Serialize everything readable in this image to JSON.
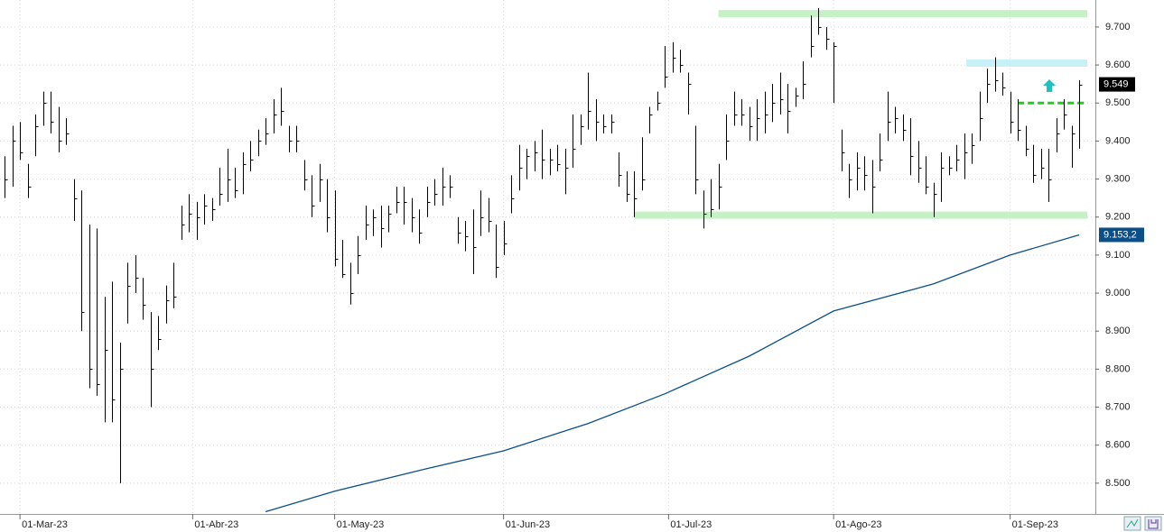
{
  "chart_data": {
    "type": "ohlc",
    "high": [
      9.36,
      9.44,
      9.45,
      9.34,
      9.47,
      9.53,
      9.53,
      9.49,
      9.46,
      9.3,
      9.27,
      9.18,
      9.17,
      8.99,
      9.03,
      8.87,
      9.08,
      9.1,
      9.04,
      8.95,
      8.94,
      9.02,
      9.08,
      9.23,
      9.26,
      9.24,
      9.26,
      9.25,
      9.33,
      9.38,
      9.33,
      9.37,
      9.4,
      9.43,
      9.46,
      9.51,
      9.54,
      9.44,
      9.44,
      9.35,
      9.31,
      9.34,
      9.3,
      9.27,
      9.14,
      9.08,
      9.15,
      9.23,
      9.22,
      9.23,
      9.23,
      9.28,
      9.28,
      9.25,
      9.22,
      9.28,
      9.3,
      9.33,
      9.31,
      9.2,
      9.19,
      9.22,
      9.27,
      9.25,
      9.18,
      9.19,
      9.31,
      9.39,
      9.38,
      9.4,
      9.43,
      9.38,
      9.39,
      9.38,
      9.47,
      9.47,
      9.58,
      9.51,
      9.47,
      9.47,
      9.37,
      9.32,
      9.32,
      9.41,
      9.49,
      9.53,
      9.65,
      9.66,
      9.64,
      9.58,
      9.44,
      9.27,
      9.3,
      9.34,
      9.47,
      9.53,
      9.51,
      9.49,
      9.51,
      9.53,
      9.55,
      9.58,
      9.55,
      9.54,
      9.61,
      9.73,
      9.75,
      9.7,
      9.66,
      9.43,
      9.34,
      9.37,
      9.36,
      9.35,
      9.42,
      9.53,
      9.49,
      9.47,
      9.46,
      9.4,
      9.36,
      9.29,
      9.37,
      9.36,
      9.39,
      9.42,
      9.42,
      9.53,
      9.59,
      9.62,
      9.58,
      9.53,
      9.51,
      9.44,
      9.39,
      9.38,
      9.38,
      9.46,
      9.51,
      9.44,
      9.56
    ],
    "low": [
      9.25,
      9.28,
      9.35,
      9.25,
      9.36,
      9.44,
      9.42,
      9.37,
      9.39,
      9.19,
      8.9,
      8.75,
      8.73,
      8.66,
      8.66,
      8.5,
      8.92,
      9.0,
      8.93,
      8.7,
      8.85,
      8.92,
      8.96,
      9.14,
      9.16,
      9.14,
      9.18,
      9.19,
      9.23,
      9.24,
      9.25,
      9.26,
      9.32,
      9.36,
      9.39,
      9.42,
      9.44,
      9.37,
      9.37,
      9.27,
      9.2,
      9.24,
      9.16,
      9.07,
      9.04,
      8.97,
      9.05,
      9.14,
      9.15,
      9.12,
      9.16,
      9.21,
      9.18,
      9.16,
      9.13,
      9.2,
      9.23,
      9.23,
      9.25,
      9.13,
      9.11,
      9.05,
      9.15,
      9.16,
      9.04,
      9.1,
      9.21,
      9.27,
      9.3,
      9.32,
      9.3,
      9.31,
      9.32,
      9.26,
      9.33,
      9.39,
      9.43,
      9.4,
      9.42,
      9.42,
      9.28,
      9.24,
      9.2,
      9.27,
      9.42,
      9.48,
      9.54,
      9.58,
      9.58,
      9.47,
      9.26,
      9.17,
      9.2,
      9.22,
      9.35,
      9.44,
      9.44,
      9.4,
      9.4,
      9.42,
      9.45,
      9.47,
      9.42,
      9.49,
      9.51,
      9.62,
      9.68,
      9.64,
      9.5,
      9.32,
      9.25,
      9.27,
      9.27,
      9.21,
      9.32,
      9.4,
      9.42,
      9.4,
      9.31,
      9.29,
      9.26,
      9.2,
      9.24,
      9.31,
      9.32,
      9.3,
      9.34,
      9.4,
      9.5,
      9.53,
      9.52,
      9.42,
      9.4,
      9.36,
      9.29,
      9.3,
      9.24,
      9.37,
      9.43,
      9.33,
      9.38
    ],
    "close": [
      9.3,
      9.4,
      9.37,
      9.28,
      9.44,
      9.5,
      9.45,
      9.4,
      9.42,
      9.25,
      8.95,
      8.8,
      8.76,
      8.85,
      8.72,
      8.8,
      9.02,
      9.04,
      8.97,
      8.8,
      8.88,
      8.98,
      8.99,
      9.18,
      9.21,
      9.2,
      9.23,
      9.22,
      9.26,
      9.3,
      9.27,
      9.34,
      9.35,
      9.4,
      9.42,
      9.47,
      9.48,
      9.4,
      9.4,
      9.3,
      9.23,
      9.3,
      9.2,
      9.09,
      9.05,
      9.0,
      9.1,
      9.18,
      9.2,
      9.17,
      9.21,
      9.24,
      9.24,
      9.2,
      9.16,
      9.24,
      9.26,
      9.28,
      9.28,
      9.16,
      9.15,
      9.12,
      9.2,
      9.19,
      9.07,
      9.13,
      9.25,
      9.33,
      9.36,
      9.37,
      9.35,
      9.35,
      9.34,
      9.33,
      9.38,
      9.44,
      9.48,
      9.45,
      9.44,
      9.45,
      9.31,
      9.26,
      9.25,
      9.3,
      9.47,
      9.5,
      9.57,
      9.62,
      9.6,
      9.55,
      9.3,
      9.21,
      9.22,
      9.28,
      9.4,
      9.47,
      9.47,
      9.44,
      9.46,
      9.47,
      9.5,
      9.51,
      9.48,
      9.52,
      9.55,
      9.65,
      9.7,
      9.67,
      9.65,
      9.37,
      9.3,
      9.33,
      9.31,
      9.28,
      9.35,
      9.45,
      9.46,
      9.43,
      9.36,
      9.33,
      9.28,
      9.26,
      9.33,
      9.33,
      9.35,
      9.37,
      9.39,
      9.46,
      9.55,
      9.56,
      9.54,
      9.45,
      9.43,
      9.38,
      9.31,
      9.33,
      9.3,
      9.42,
      9.47,
      9.42,
      9.549
    ],
    "last_close_label": "9.549",
    "ma": {
      "color": "#0b4f8a",
      "x": [
        34,
        43,
        55,
        65,
        76,
        86,
        97,
        108,
        121,
        131,
        140
      ],
      "values": [
        8.425,
        8.479,
        8.538,
        8.585,
        8.657,
        8.735,
        8.834,
        8.953,
        9.024,
        9.1,
        9.1532
      ]
    },
    "ma_label": "9.153,2",
    "levels": [
      {
        "value": 9.735,
        "start": 93,
        "color": "#c5f2c5",
        "style": "band"
      },
      {
        "value": 9.205,
        "start": 82,
        "color": "#c5f2c5",
        "style": "band"
      },
      {
        "value": 9.605,
        "start": 125.3,
        "color": "#c8f0f8",
        "style": "band"
      },
      {
        "value": 9.5,
        "start": 132,
        "color": "#22cc22",
        "style": "dashed"
      }
    ],
    "xlim": [
      -0.6,
      142.1
    ],
    "ylim": [
      8.419,
      9.771
    ],
    "xticks": [
      {
        "value": 2,
        "label": "01-Mar-23"
      },
      {
        "value": 24.5,
        "label": "01-Abr-23"
      },
      {
        "value": 43,
        "label": "01-May-23"
      },
      {
        "value": 65,
        "label": "01-Jun-23"
      },
      {
        "value": 86.5,
        "label": "01-Jul-23"
      },
      {
        "value": 108,
        "label": "01-Ago-23"
      },
      {
        "value": 131,
        "label": "01-Sep-23"
      }
    ],
    "yticks": [
      {
        "value": 8.5,
        "label": "8.500"
      },
      {
        "value": 8.6,
        "label": "8.600"
      },
      {
        "value": 8.7,
        "label": "8.700"
      },
      {
        "value": 8.8,
        "label": "8.800"
      },
      {
        "value": 8.9,
        "label": "8.900"
      },
      {
        "value": 9.0,
        "label": "9.000"
      },
      {
        "value": 9.1,
        "label": "9.100"
      },
      {
        "value": 9.2,
        "label": "9.200"
      },
      {
        "value": 9.3,
        "label": "9.300"
      },
      {
        "value": 9.4,
        "label": "9.400"
      },
      {
        "value": 9.5,
        "label": "9.500"
      },
      {
        "value": 9.6,
        "label": "9.600"
      },
      {
        "value": 9.7,
        "label": "9.700"
      }
    ],
    "grid": true,
    "bar_color": "#000000"
  }
}
